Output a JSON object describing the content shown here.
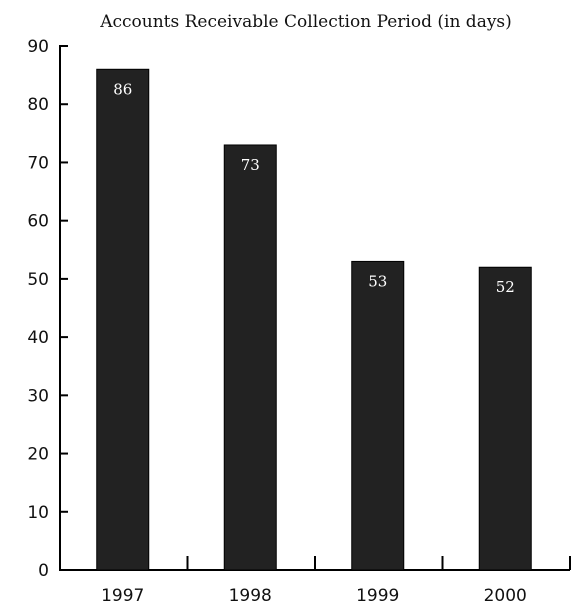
{
  "chart_data": {
    "type": "bar",
    "title": "Accounts Receivable Collection Period (in days)",
    "categories": [
      "1997",
      "1998",
      "1999",
      "2000"
    ],
    "values": [
      86,
      73,
      53,
      52
    ],
    "data_labels": [
      "86",
      "73",
      "53",
      "52"
    ],
    "ylim": [
      0,
      90
    ],
    "yticks": [
      0,
      10,
      20,
      30,
      40,
      50,
      60,
      70,
      80,
      90
    ],
    "xlabel": "",
    "ylabel": "",
    "grid": false,
    "bar_color": "#222222",
    "label_color": "#ffffff"
  }
}
